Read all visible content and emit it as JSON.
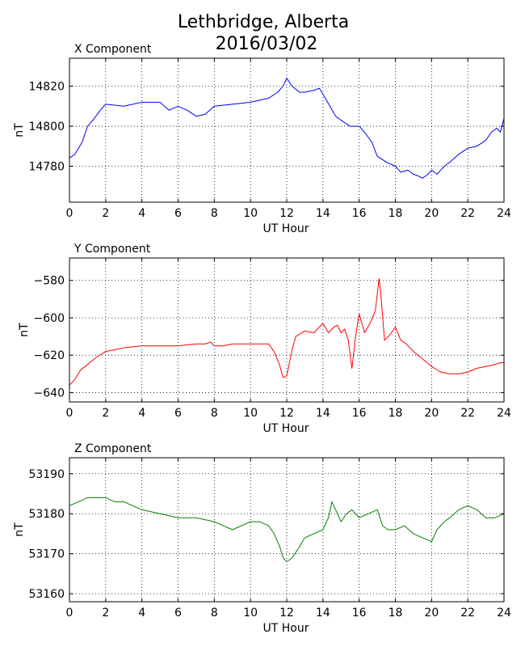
{
  "title_line1": "Lethbridge, Alberta",
  "title_line2": "2016/03/02",
  "chart_data": [
    {
      "type": "line",
      "subtitle": "X Component",
      "xlabel": "UT Hour",
      "ylabel": "nT",
      "xlim": [
        0,
        24
      ],
      "ylim": [
        14762,
        14834
      ],
      "xticks": [
        0,
        2,
        4,
        6,
        8,
        10,
        12,
        14,
        16,
        18,
        20,
        22,
        24
      ],
      "yticks": [
        14780,
        14800,
        14820
      ],
      "grid": true,
      "color": "#0000ff",
      "x": [
        0,
        0.3,
        0.7,
        1.0,
        1.3,
        1.7,
        2.0,
        3.0,
        4.0,
        5.0,
        5.5,
        6.0,
        6.5,
        7.0,
        7.5,
        8.0,
        9.0,
        10.0,
        11.0,
        11.5,
        11.8,
        12.0,
        12.3,
        12.7,
        13.0,
        13.5,
        13.8,
        14.2,
        14.7,
        15.0,
        15.5,
        16.0,
        16.3,
        16.7,
        17.0,
        17.5,
        18.0,
        18.3,
        18.7,
        19.0,
        19.3,
        19.5,
        19.8,
        20.0,
        20.3,
        20.7,
        21.0,
        21.5,
        22.0,
        22.5,
        23.0,
        23.3,
        23.6,
        23.8,
        24.0
      ],
      "y": [
        14784,
        14786,
        14792,
        14800,
        14803,
        14808,
        14811,
        14810,
        14812,
        14812,
        14808,
        14810,
        14808,
        14805,
        14806,
        14810,
        14811,
        14812,
        14814,
        14817,
        14820,
        14824,
        14820,
        14817,
        14817,
        14818,
        14819,
        14813,
        14805,
        14803,
        14800,
        14800,
        14797,
        14792,
        14785,
        14782,
        14780,
        14777,
        14778,
        14776,
        14775,
        14774,
        14776,
        14778,
        14776,
        14780,
        14782,
        14786,
        14789,
        14790,
        14793,
        14797,
        14799,
        14797,
        14804
      ]
    },
    {
      "type": "line",
      "subtitle": "Y Component",
      "xlabel": "UT Hour",
      "ylabel": "nT",
      "xlim": [
        0,
        24
      ],
      "ylim": [
        -645,
        -568
      ],
      "xticks": [
        0,
        2,
        4,
        6,
        8,
        10,
        12,
        14,
        16,
        18,
        20,
        22,
        24
      ],
      "yticks": [
        -640,
        -620,
        -600,
        -580
      ],
      "grid": true,
      "color": "#ff0000",
      "x": [
        0,
        0.3,
        0.6,
        1.0,
        1.5,
        2.0,
        3.0,
        4.0,
        5.0,
        6.0,
        7.0,
        7.5,
        7.8,
        8.0,
        8.5,
        9.0,
        10.0,
        10.7,
        11.0,
        11.3,
        11.6,
        11.8,
        12.0,
        12.3,
        12.5,
        13.0,
        13.5,
        14.0,
        14.3,
        14.6,
        14.8,
        15.0,
        15.2,
        15.4,
        15.6,
        15.8,
        16.0,
        16.3,
        16.6,
        16.9,
        17.1,
        17.2,
        17.4,
        17.7,
        18.0,
        18.3,
        18.6,
        19.0,
        19.5,
        20.0,
        20.5,
        21.0,
        21.5,
        22.0,
        22.5,
        23.0,
        23.5,
        23.8,
        24.0
      ],
      "y": [
        -636,
        -633,
        -628,
        -625,
        -621,
        -618,
        -616,
        -615,
        -615,
        -615,
        -614,
        -614,
        -613,
        -615,
        -615,
        -614,
        -614,
        -614,
        -614,
        -618,
        -625,
        -632,
        -631,
        -617,
        -610,
        -607,
        -608,
        -603,
        -608,
        -605,
        -604,
        -608,
        -606,
        -612,
        -627,
        -610,
        -598,
        -608,
        -603,
        -596,
        -579,
        -588,
        -612,
        -609,
        -605,
        -612,
        -614,
        -618,
        -622,
        -626,
        -629,
        -630,
        -630,
        -629,
        -627,
        -626,
        -625,
        -624,
        -624
      ]
    },
    {
      "type": "line",
      "subtitle": "Z Component",
      "xlabel": "UT Hour",
      "ylabel": "nT",
      "xlim": [
        0,
        24
      ],
      "ylim": [
        53158,
        53194
      ],
      "xticks": [
        0,
        2,
        4,
        6,
        8,
        10,
        12,
        14,
        16,
        18,
        20,
        22,
        24
      ],
      "yticks": [
        53160,
        53170,
        53180,
        53190
      ],
      "grid": true,
      "color": "#008000",
      "x": [
        0,
        0.5,
        1.0,
        1.5,
        2.0,
        2.5,
        3.0,
        4.0,
        5.0,
        6.0,
        7.0,
        8.0,
        9.0,
        10.0,
        10.5,
        11.0,
        11.3,
        11.6,
        11.8,
        12.0,
        12.3,
        12.6,
        13.0,
        13.5,
        14.0,
        14.3,
        14.5,
        14.7,
        15.0,
        15.3,
        15.6,
        16.0,
        16.5,
        17.0,
        17.3,
        17.6,
        18.0,
        18.5,
        19.0,
        19.5,
        20.0,
        20.3,
        20.7,
        21.0,
        21.5,
        22.0,
        22.5,
        23.0,
        23.5,
        24.0
      ],
      "y": [
        53182,
        53183,
        53184,
        53184,
        53184,
        53183,
        53183,
        53181,
        53180,
        53179,
        53179,
        53178,
        53176,
        53178,
        53178,
        53177,
        53175,
        53172,
        53169,
        53168,
        53169,
        53171,
        53174,
        53175,
        53176,
        53179,
        53183,
        53181,
        53178,
        53180,
        53181,
        53179,
        53180,
        53181,
        53177,
        53176,
        53176,
        53177,
        53175,
        53174,
        53173,
        53176,
        53178,
        53179,
        53181,
        53182,
        53181,
        53179,
        53179,
        53180
      ]
    }
  ]
}
